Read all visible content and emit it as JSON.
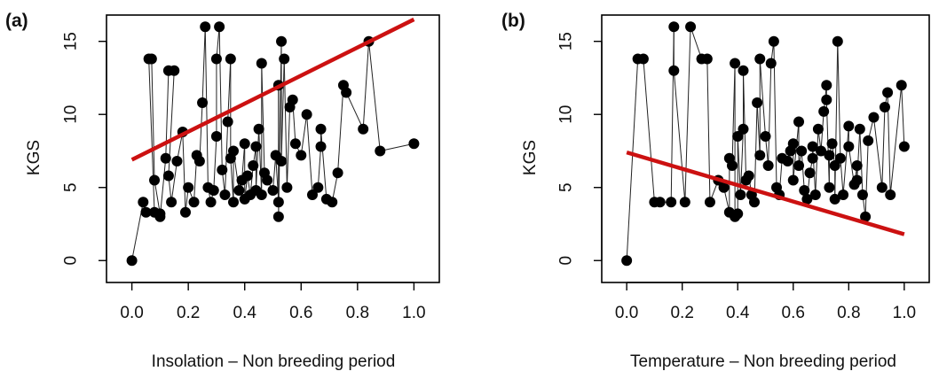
{
  "chart_data": [
    {
      "type": "scatter",
      "panel_label": "(a)",
      "xlabel": "Insolation – Non breeding period",
      "ylabel": "KGS",
      "xlim": [
        -0.09,
        1.09
      ],
      "ylim": [
        -1.5,
        16.8
      ],
      "xticks": [
        "0.0",
        "0.2",
        "0.4",
        "0.6",
        "0.8",
        "1.0"
      ],
      "yticks": [
        "0",
        "5",
        "10",
        "15"
      ],
      "grid": false,
      "points_connected": true,
      "point_color": "#000000",
      "points": [
        [
          0.0,
          0.0
        ],
        [
          0.04,
          4.0
        ],
        [
          0.05,
          3.3
        ],
        [
          0.08,
          3.3
        ],
        [
          0.06,
          13.8
        ],
        [
          0.07,
          13.8
        ],
        [
          0.08,
          5.5
        ],
        [
          0.1,
          3.2
        ],
        [
          0.1,
          3.0
        ],
        [
          0.12,
          7.0
        ],
        [
          0.13,
          13.0
        ],
        [
          0.15,
          13.0
        ],
        [
          0.13,
          5.8
        ],
        [
          0.14,
          4.0
        ],
        [
          0.16,
          6.8
        ],
        [
          0.18,
          8.8
        ],
        [
          0.19,
          3.3
        ],
        [
          0.2,
          5.0
        ],
        [
          0.22,
          4.0
        ],
        [
          0.23,
          7.2
        ],
        [
          0.24,
          6.8
        ],
        [
          0.25,
          10.8
        ],
        [
          0.26,
          16.0
        ],
        [
          0.27,
          5.0
        ],
        [
          0.28,
          4.0
        ],
        [
          0.29,
          4.8
        ],
        [
          0.3,
          8.5
        ],
        [
          0.3,
          13.8
        ],
        [
          0.31,
          16.0
        ],
        [
          0.32,
          6.2
        ],
        [
          0.33,
          4.5
        ],
        [
          0.34,
          9.5
        ],
        [
          0.35,
          13.8
        ],
        [
          0.35,
          7.0
        ],
        [
          0.36,
          4.0
        ],
        [
          0.36,
          7.5
        ],
        [
          0.38,
          4.8
        ],
        [
          0.39,
          5.5
        ],
        [
          0.4,
          8.0
        ],
        [
          0.4,
          4.2
        ],
        [
          0.41,
          5.8
        ],
        [
          0.42,
          4.5
        ],
        [
          0.43,
          6.5
        ],
        [
          0.44,
          7.8
        ],
        [
          0.44,
          4.8
        ],
        [
          0.45,
          9.0
        ],
        [
          0.46,
          4.5
        ],
        [
          0.46,
          13.5
        ],
        [
          0.47,
          6.0
        ],
        [
          0.48,
          5.5
        ],
        [
          0.5,
          4.8
        ],
        [
          0.51,
          7.2
        ],
        [
          0.52,
          4.0
        ],
        [
          0.52,
          12.0
        ],
        [
          0.52,
          3.0
        ],
        [
          0.53,
          15.0
        ],
        [
          0.53,
          6.8
        ],
        [
          0.54,
          13.8
        ],
        [
          0.55,
          5.0
        ],
        [
          0.56,
          10.5
        ],
        [
          0.57,
          11.0
        ],
        [
          0.58,
          8.0
        ],
        [
          0.6,
          7.2
        ],
        [
          0.62,
          10.0
        ],
        [
          0.64,
          4.5
        ],
        [
          0.66,
          5.0
        ],
        [
          0.67,
          7.8
        ],
        [
          0.67,
          9.0
        ],
        [
          0.69,
          4.2
        ],
        [
          0.71,
          4.0
        ],
        [
          0.73,
          6.0
        ],
        [
          0.75,
          12.0
        ],
        [
          0.76,
          11.5
        ],
        [
          0.82,
          9.0
        ],
        [
          0.84,
          15.0
        ],
        [
          0.88,
          7.5
        ],
        [
          1.0,
          8.0
        ]
      ],
      "fit_line": {
        "color": "#cc1111",
        "x": [
          0.0,
          1.0
        ],
        "y": [
          6.9,
          16.5
        ]
      }
    },
    {
      "type": "scatter",
      "panel_label": "(b)",
      "xlabel": "Temperature – Non breeding period",
      "ylabel": "KGS",
      "xlim": [
        -0.09,
        1.09
      ],
      "ylim": [
        -1.5,
        16.8
      ],
      "xticks": [
        "0.0",
        "0.2",
        "0.4",
        "0.6",
        "0.8",
        "1.0"
      ],
      "yticks": [
        "0",
        "5",
        "10",
        "15"
      ],
      "grid": false,
      "points_connected": true,
      "point_color": "#000000",
      "points": [
        [
          0.0,
          0.0
        ],
        [
          0.04,
          13.8
        ],
        [
          0.06,
          13.8
        ],
        [
          0.1,
          4.0
        ],
        [
          0.12,
          4.0
        ],
        [
          0.16,
          4.0
        ],
        [
          0.17,
          16.0
        ],
        [
          0.17,
          13.0
        ],
        [
          0.21,
          4.0
        ],
        [
          0.23,
          16.0
        ],
        [
          0.27,
          13.8
        ],
        [
          0.29,
          13.8
        ],
        [
          0.3,
          4.0
        ],
        [
          0.33,
          5.5
        ],
        [
          0.35,
          5.0
        ],
        [
          0.37,
          3.3
        ],
        [
          0.37,
          7.0
        ],
        [
          0.38,
          6.5
        ],
        [
          0.39,
          13.5
        ],
        [
          0.39,
          3.0
        ],
        [
          0.4,
          3.2
        ],
        [
          0.4,
          8.5
        ],
        [
          0.41,
          4.5
        ],
        [
          0.42,
          9.0
        ],
        [
          0.42,
          13.0
        ],
        [
          0.43,
          5.5
        ],
        [
          0.44,
          5.8
        ],
        [
          0.45,
          4.5
        ],
        [
          0.46,
          4.0
        ],
        [
          0.47,
          10.8
        ],
        [
          0.48,
          7.2
        ],
        [
          0.48,
          13.8
        ],
        [
          0.5,
          8.5
        ],
        [
          0.51,
          6.5
        ],
        [
          0.52,
          13.5
        ],
        [
          0.53,
          15.0
        ],
        [
          0.54,
          5.0
        ],
        [
          0.55,
          4.5
        ],
        [
          0.56,
          7.0
        ],
        [
          0.58,
          6.8
        ],
        [
          0.59,
          7.5
        ],
        [
          0.6,
          8.0
        ],
        [
          0.6,
          5.5
        ],
        [
          0.62,
          9.5
        ],
        [
          0.62,
          6.5
        ],
        [
          0.63,
          7.5
        ],
        [
          0.64,
          4.8
        ],
        [
          0.65,
          4.2
        ],
        [
          0.66,
          6.0
        ],
        [
          0.67,
          7.0
        ],
        [
          0.67,
          7.8
        ],
        [
          0.68,
          4.5
        ],
        [
          0.69,
          9.0
        ],
        [
          0.7,
          7.5
        ],
        [
          0.71,
          10.2
        ],
        [
          0.72,
          12.0
        ],
        [
          0.72,
          11.0
        ],
        [
          0.73,
          5.0
        ],
        [
          0.73,
          7.2
        ],
        [
          0.74,
          8.0
        ],
        [
          0.75,
          6.5
        ],
        [
          0.75,
          4.2
        ],
        [
          0.76,
          15.0
        ],
        [
          0.77,
          7.0
        ],
        [
          0.78,
          4.5
        ],
        [
          0.8,
          9.2
        ],
        [
          0.8,
          7.8
        ],
        [
          0.82,
          5.2
        ],
        [
          0.83,
          6.5
        ],
        [
          0.83,
          5.5
        ],
        [
          0.84,
          9.0
        ],
        [
          0.85,
          4.5
        ],
        [
          0.86,
          3.0
        ],
        [
          0.87,
          8.2
        ],
        [
          0.89,
          9.8
        ],
        [
          0.92,
          5.0
        ],
        [
          0.93,
          10.5
        ],
        [
          0.94,
          11.5
        ],
        [
          0.95,
          4.5
        ],
        [
          0.99,
          12.0
        ],
        [
          1.0,
          7.8
        ]
      ],
      "fit_line": {
        "color": "#cc1111",
        "x": [
          0.0,
          1.0
        ],
        "y": [
          7.4,
          1.8
        ]
      }
    }
  ]
}
